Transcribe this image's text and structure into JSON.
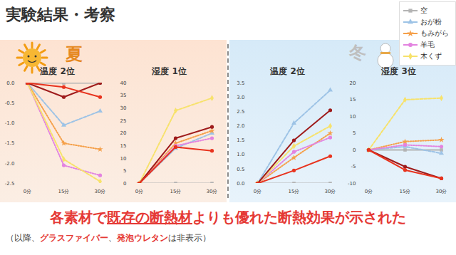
{
  "header": {
    "title": "実験結果・考察"
  },
  "sections": [
    "夏",
    "冬"
  ],
  "conclusion": [
    "各素材で",
    "既存の断熱材",
    "よりも優れた断熱効果が示された"
  ],
  "note": [
    "（以降、",
    "グラスファイバー",
    "、",
    "発泡ウレタン",
    "は非表示）"
  ],
  "chart_data": [
    {
      "type": "line",
      "title": "温度 2位",
      "categories": [
        "0分",
        "15分",
        "30分"
      ],
      "ylim": [
        -2.5,
        0
      ],
      "yticks": [
        -2.5,
        {
          "value": -2,
          "label": "-2.0"
        },
        -1.5,
        {
          "value": -1,
          "label": "-1.0"
        },
        -0.5,
        {
          "value": 0,
          "label": "0.0"
        }
      ],
      "grid": false,
      "series": [
        {
          "name": "空",
          "color": "#b4b4b4",
          "marker": "square",
          "line_style": "solid",
          "values": [
            0,
            0,
            0
          ]
        },
        {
          "name": "おが粉",
          "color": "#9dc3e6",
          "marker": "triangle",
          "line_style": "dashed",
          "values": [
            0,
            -1.05,
            -0.7
          ]
        },
        {
          "name": "もみがら",
          "color": "#f5a04a",
          "marker": "star",
          "line_style": "dotted",
          "values": [
            0,
            -1.5,
            -1.65
          ]
        },
        {
          "name": "羊毛",
          "color": "#e383e0",
          "marker": "circle",
          "line_style": "dotted",
          "values": [
            0,
            -2.05,
            -2.3
          ]
        },
        {
          "name": "木くず",
          "color": "#f7e26b",
          "marker": "diamond",
          "line_style": "dashed",
          "values": [
            0,
            -1.9,
            -2.45
          ]
        },
        {
          "name": null,
          "color": "#9e1b1b",
          "marker": "circle",
          "line_style": "solid",
          "values": [
            0,
            -0.35,
            0
          ]
        },
        {
          "name": null,
          "color": "#e8331e",
          "marker": "circle",
          "line_style": "solid",
          "values": [
            0,
            -0.1,
            -0.35
          ]
        }
      ]
    },
    {
      "type": "line",
      "title": "湿度 1位",
      "categories": [
        "0分",
        "15分",
        "30分"
      ],
      "ylim": [
        0,
        40
      ],
      "yticks": [
        0,
        5,
        10,
        15,
        20,
        25,
        30,
        35,
        40
      ],
      "grid": false,
      "series": [
        {
          "name": "空",
          "color": "#b4b4b4",
          "marker": "square",
          "line_style": "solid",
          "values": [
            0,
            0,
            0
          ]
        },
        {
          "name": "おが粉",
          "color": "#9dc3e6",
          "marker": "triangle",
          "line_style": "dashed",
          "values": [
            0,
            14,
            20
          ]
        },
        {
          "name": "もみがら",
          "color": "#f5a04a",
          "marker": "star",
          "line_style": "dotted",
          "values": [
            0,
            16,
            21
          ]
        },
        {
          "name": "羊毛",
          "color": "#e383e0",
          "marker": "circle",
          "line_style": "dotted",
          "values": [
            0,
            15,
            18
          ]
        },
        {
          "name": "木くず",
          "color": "#f7e26b",
          "marker": "diamond",
          "line_style": "dashed",
          "values": [
            0,
            29,
            34
          ]
        },
        {
          "name": null,
          "color": "#9e1b1b",
          "marker": "circle",
          "line_style": "solid",
          "values": [
            0,
            18,
            22.5
          ]
        },
        {
          "name": null,
          "color": "#e8331e",
          "marker": "circle",
          "line_style": "solid",
          "values": [
            0,
            14.5,
            13
          ]
        }
      ]
    },
    {
      "type": "line",
      "title": "温度 2位",
      "categories": [
        "0分",
        "15分",
        "30分"
      ],
      "ylim": [
        0,
        3.5
      ],
      "yticks": [
        {
          "value": 0,
          "label": "0.0"
        },
        0.5,
        {
          "value": 1,
          "label": "1.0"
        },
        1.5,
        {
          "value": 2,
          "label": "2.0"
        },
        2.5,
        {
          "value": 3,
          "label": "3.0"
        },
        3.5
      ],
      "grid": false,
      "series": [
        {
          "name": "空",
          "color": "#b4b4b4",
          "marker": "square",
          "line_style": "solid",
          "values": [
            0,
            0,
            0
          ]
        },
        {
          "name": "おが粉",
          "color": "#9dc3e6",
          "marker": "triangle",
          "line_style": "dashed",
          "values": [
            0,
            2.1,
            3.25
          ]
        },
        {
          "name": "もみがら",
          "color": "#f5a04a",
          "marker": "star",
          "line_style": "dotted",
          "values": [
            0,
            0.9,
            1.75
          ]
        },
        {
          "name": "羊毛",
          "color": "#e383e0",
          "marker": "circle",
          "line_style": "dotted",
          "values": [
            0,
            1.1,
            1.6
          ]
        },
        {
          "name": "木くず",
          "color": "#f7e26b",
          "marker": "diamond",
          "line_style": "dashed",
          "values": [
            0,
            1.3,
            2.0
          ]
        },
        {
          "name": null,
          "color": "#9e1b1b",
          "marker": "circle",
          "line_style": "solid",
          "values": [
            0,
            1.5,
            2.55
          ]
        },
        {
          "name": null,
          "color": "#e8331e",
          "marker": "circle",
          "line_style": "solid",
          "values": [
            0,
            0.45,
            0.95
          ]
        }
      ]
    },
    {
      "type": "line",
      "title": "湿度 3位",
      "categories": [
        "0分",
        "15分",
        "30分"
      ],
      "ylim": [
        -10,
        20
      ],
      "yticks": [
        -10,
        -5,
        0,
        5,
        10,
        15,
        20
      ],
      "grid": false,
      "series": [
        {
          "name": "空",
          "color": "#b4b4b4",
          "marker": "square",
          "line_style": "solid",
          "values": [
            0,
            0,
            0
          ]
        },
        {
          "name": "おが粉",
          "color": "#9dc3e6",
          "marker": "triangle",
          "line_style": "dashed",
          "values": [
            0,
            1,
            -1
          ]
        },
        {
          "name": "もみがら",
          "color": "#f5a04a",
          "marker": "star",
          "line_style": "dotted",
          "values": [
            0,
            2.5,
            3
          ]
        },
        {
          "name": "羊毛",
          "color": "#e383e0",
          "marker": "circle",
          "line_style": "dotted",
          "values": [
            0,
            1.5,
            1
          ]
        },
        {
          "name": "木くず",
          "color": "#f7e26b",
          "marker": "diamond",
          "line_style": "dashed",
          "values": [
            0,
            15,
            15.5
          ]
        },
        {
          "name": null,
          "color": "#9e1b1b",
          "marker": "circle",
          "line_style": "solid",
          "values": [
            0,
            -5,
            -8.5
          ]
        },
        {
          "name": null,
          "color": "#e8331e",
          "marker": "circle",
          "line_style": "solid",
          "values": [
            0,
            -6,
            -8.5
          ]
        }
      ]
    }
  ]
}
